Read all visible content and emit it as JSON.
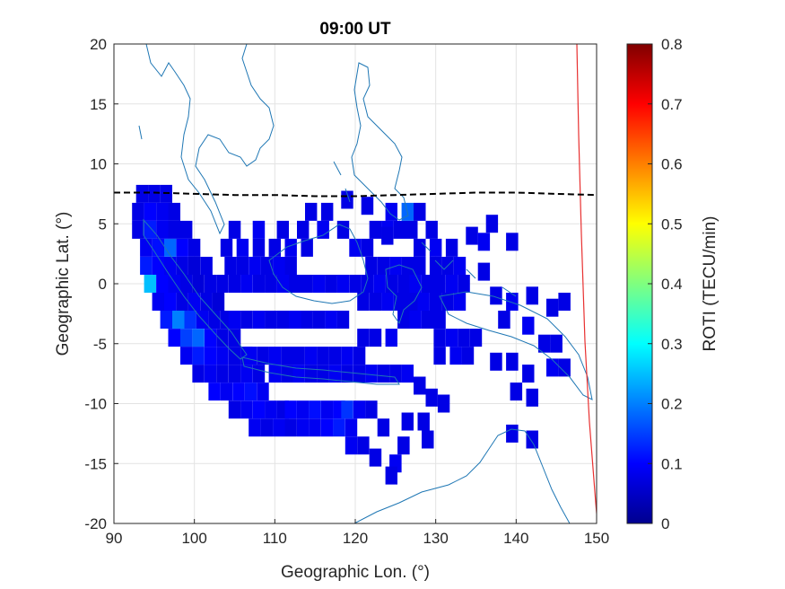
{
  "chart_data": {
    "type": "heatmap",
    "title": "09:00 UT",
    "xlabel": "Geographic Lon. (°)",
    "ylabel": "Geographic Lat. (°)",
    "xlim": [
      90,
      150
    ],
    "ylim": [
      -20,
      20
    ],
    "xticks": [
      90,
      100,
      110,
      120,
      130,
      140,
      150
    ],
    "yticks": [
      -20,
      -15,
      -10,
      -5,
      0,
      5,
      10,
      15,
      20
    ],
    "grid": true,
    "colorbar": {
      "label": "ROTI (TECU/min)",
      "colormap": "jet",
      "range": [
        0,
        0.8
      ],
      "ticks": [
        0,
        0.1,
        0.2,
        0.3,
        0.4,
        0.5,
        0.6,
        0.7,
        0.8
      ]
    },
    "cell_size_deg": 1.5,
    "cells": [
      [
        93.5,
        7.5,
        0.08
      ],
      [
        95.0,
        7.5,
        0.08
      ],
      [
        96.5,
        7.5,
        0.08
      ],
      [
        93.0,
        6.0,
        0.08
      ],
      [
        94.5,
        6.0,
        0.1
      ],
      [
        96.0,
        6.0,
        0.09
      ],
      [
        97.5,
        6.0,
        0.08
      ],
      [
        93.0,
        4.5,
        0.08
      ],
      [
        94.5,
        4.5,
        0.12
      ],
      [
        96.0,
        4.5,
        0.09
      ],
      [
        97.5,
        4.5,
        0.08
      ],
      [
        99.0,
        4.5,
        0.08
      ],
      [
        94.0,
        3.0,
        0.09
      ],
      [
        95.5,
        3.0,
        0.11
      ],
      [
        97.0,
        3.0,
        0.18
      ],
      [
        98.5,
        3.0,
        0.1
      ],
      [
        100.0,
        3.0,
        0.08
      ],
      [
        94.0,
        1.5,
        0.12
      ],
      [
        95.5,
        1.5,
        0.1
      ],
      [
        97.0,
        1.5,
        0.09
      ],
      [
        98.5,
        1.5,
        0.08
      ],
      [
        100.0,
        1.5,
        0.07
      ],
      [
        101.5,
        1.5,
        0.08
      ],
      [
        94.5,
        0.0,
        0.25
      ],
      [
        96.0,
        0.0,
        0.1
      ],
      [
        97.5,
        0.0,
        0.09
      ],
      [
        99.0,
        0.0,
        0.08
      ],
      [
        100.5,
        0.0,
        0.07
      ],
      [
        102.0,
        0.0,
        0.08
      ],
      [
        95.5,
        -1.5,
        0.09
      ],
      [
        97.0,
        -1.5,
        0.1
      ],
      [
        98.5,
        -1.5,
        0.08
      ],
      [
        100.0,
        -1.5,
        0.09
      ],
      [
        101.5,
        -1.5,
        0.08
      ],
      [
        103.0,
        -1.5,
        0.07
      ],
      [
        96.5,
        -3.0,
        0.12
      ],
      [
        98.0,
        -3.0,
        0.2
      ],
      [
        99.5,
        -3.0,
        0.14
      ],
      [
        101.0,
        -3.0,
        0.09
      ],
      [
        102.5,
        -3.0,
        0.08
      ],
      [
        104.0,
        -3.0,
        0.08
      ],
      [
        97.5,
        -4.5,
        0.1
      ],
      [
        99.0,
        -4.5,
        0.15
      ],
      [
        100.5,
        -4.5,
        0.18
      ],
      [
        102.0,
        -4.5,
        0.1
      ],
      [
        103.5,
        -4.5,
        0.08
      ],
      [
        105.0,
        -4.5,
        0.08
      ],
      [
        99.0,
        -6.0,
        0.09
      ],
      [
        100.5,
        -6.0,
        0.12
      ],
      [
        102.0,
        -6.0,
        0.1
      ],
      [
        103.5,
        -6.0,
        0.09
      ],
      [
        105.0,
        -6.0,
        0.08
      ],
      [
        106.5,
        -6.0,
        0.08
      ],
      [
        100.5,
        -7.5,
        0.08
      ],
      [
        102.0,
        -7.5,
        0.09
      ],
      [
        103.5,
        -7.5,
        0.08
      ],
      [
        105.0,
        -7.5,
        0.08
      ],
      [
        106.5,
        -7.5,
        0.09
      ],
      [
        108.0,
        -7.5,
        0.08
      ],
      [
        102.5,
        -9.0,
        0.1
      ],
      [
        104.0,
        -9.0,
        0.09
      ],
      [
        105.5,
        -9.0,
        0.1
      ],
      [
        107.0,
        -9.0,
        0.11
      ],
      [
        108.5,
        -9.0,
        0.09
      ],
      [
        105.0,
        -10.5,
        0.08
      ],
      [
        106.5,
        -10.5,
        0.09
      ],
      [
        108.0,
        -10.5,
        0.1
      ],
      [
        109.5,
        -10.5,
        0.09
      ],
      [
        111.0,
        -10.5,
        0.08
      ],
      [
        107.5,
        -12.0,
        0.09
      ],
      [
        109.0,
        -12.0,
        0.08
      ],
      [
        110.5,
        -12.0,
        0.09
      ],
      [
        112.0,
        -12.0,
        0.08
      ],
      [
        113.5,
        -12.0,
        0.09
      ],
      [
        112.0,
        -10.5,
        0.1
      ],
      [
        113.5,
        -10.5,
        0.09
      ],
      [
        115.0,
        -10.5,
        0.11
      ],
      [
        116.5,
        -10.5,
        0.09
      ],
      [
        118.0,
        -10.5,
        0.1
      ],
      [
        115.0,
        -12.0,
        0.09
      ],
      [
        116.5,
        -12.0,
        0.1
      ],
      [
        118.0,
        -12.0,
        0.12
      ],
      [
        119.5,
        -12.0,
        0.09
      ],
      [
        119.0,
        -10.5,
        0.14
      ],
      [
        120.5,
        -10.5,
        0.09
      ],
      [
        122.0,
        -10.5,
        0.08
      ],
      [
        119.5,
        -13.5,
        0.09
      ],
      [
        121.0,
        -13.5,
        0.08
      ],
      [
        123.5,
        -12.0,
        0.08
      ],
      [
        110.0,
        -7.5,
        0.09
      ],
      [
        111.5,
        -7.5,
        0.08
      ],
      [
        113.0,
        -7.5,
        0.09
      ],
      [
        114.5,
        -7.5,
        0.08
      ],
      [
        116.0,
        -7.5,
        0.08
      ],
      [
        117.5,
        -7.5,
        0.09
      ],
      [
        119.0,
        -7.5,
        0.08
      ],
      [
        120.5,
        -7.5,
        0.08
      ],
      [
        122.0,
        -7.5,
        0.09
      ],
      [
        123.5,
        -7.5,
        0.08
      ],
      [
        125.0,
        -7.5,
        0.08
      ],
      [
        126.5,
        -7.5,
        0.09
      ],
      [
        107.0,
        -6.0,
        0.09
      ],
      [
        108.5,
        -6.0,
        0.08
      ],
      [
        110.0,
        -6.0,
        0.09
      ],
      [
        111.5,
        -6.0,
        0.08
      ],
      [
        113.0,
        -6.0,
        0.08
      ],
      [
        114.5,
        -6.0,
        0.09
      ],
      [
        116.0,
        -6.0,
        0.08
      ],
      [
        117.5,
        -6.0,
        0.08
      ],
      [
        119.0,
        -6.0,
        0.09
      ],
      [
        120.5,
        -6.0,
        0.08
      ],
      [
        105.0,
        -3.0,
        0.09
      ],
      [
        106.5,
        -3.0,
        0.08
      ],
      [
        108.0,
        -3.0,
        0.09
      ],
      [
        109.5,
        -3.0,
        0.08
      ],
      [
        111.0,
        -3.0,
        0.08
      ],
      [
        112.5,
        -3.0,
        0.09
      ],
      [
        114.0,
        -3.0,
        0.08
      ],
      [
        115.5,
        -3.0,
        0.08
      ],
      [
        117.0,
        -3.0,
        0.09
      ],
      [
        118.5,
        -3.0,
        0.08
      ],
      [
        103.5,
        0.0,
        0.08
      ],
      [
        105.0,
        0.0,
        0.08
      ],
      [
        106.5,
        0.0,
        0.09
      ],
      [
        108.0,
        0.0,
        0.08
      ],
      [
        109.5,
        0.0,
        0.08
      ],
      [
        111.0,
        0.0,
        0.09
      ],
      [
        112.5,
        0.0,
        0.08
      ],
      [
        114.0,
        0.0,
        0.08
      ],
      [
        115.5,
        0.0,
        0.09
      ],
      [
        117.0,
        0.0,
        0.08
      ],
      [
        118.5,
        0.0,
        0.09
      ],
      [
        120.0,
        0.0,
        0.08
      ],
      [
        104.5,
        1.5,
        0.08
      ],
      [
        106.0,
        1.5,
        0.08
      ],
      [
        107.5,
        1.5,
        0.09
      ],
      [
        109.0,
        1.5,
        0.08
      ],
      [
        110.5,
        1.5,
        0.09
      ],
      [
        112.0,
        1.5,
        0.08
      ],
      [
        104.0,
        3.0,
        0.08
      ],
      [
        106.0,
        3.0,
        0.09
      ],
      [
        108.0,
        3.0,
        0.08
      ],
      [
        110.0,
        3.0,
        0.08
      ],
      [
        112.0,
        3.0,
        0.09
      ],
      [
        114.0,
        3.0,
        0.08
      ],
      [
        105.0,
        4.5,
        0.08
      ],
      [
        108.0,
        4.5,
        0.09
      ],
      [
        111.0,
        4.5,
        0.08
      ],
      [
        113.5,
        4.5,
        0.08
      ],
      [
        116.0,
        4.5,
        0.09
      ],
      [
        114.5,
        6.0,
        0.08
      ],
      [
        116.5,
        6.0,
        0.08
      ],
      [
        118.5,
        4.5,
        0.08
      ],
      [
        120.0,
        3.0,
        0.09
      ],
      [
        121.5,
        3.0,
        0.08
      ],
      [
        122.5,
        4.5,
        0.08
      ],
      [
        124.0,
        4.5,
        0.09
      ],
      [
        125.5,
        4.5,
        0.08
      ],
      [
        127.0,
        4.5,
        0.08
      ],
      [
        124.5,
        6.0,
        0.09
      ],
      [
        126.5,
        6.0,
        0.18
      ],
      [
        128.0,
        6.0,
        0.08
      ],
      [
        129.5,
        4.5,
        0.08
      ],
      [
        122.0,
        1.5,
        0.08
      ],
      [
        123.5,
        1.5,
        0.08
      ],
      [
        125.0,
        1.5,
        0.09
      ],
      [
        126.5,
        1.5,
        0.08
      ],
      [
        128.0,
        1.5,
        0.08
      ],
      [
        121.5,
        0.0,
        0.08
      ],
      [
        123.0,
        0.0,
        0.09
      ],
      [
        124.5,
        0.0,
        0.08
      ],
      [
        126.0,
        0.0,
        0.08
      ],
      [
        127.5,
        0.0,
        0.09
      ],
      [
        129.0,
        0.0,
        0.08
      ],
      [
        130.5,
        0.0,
        0.08
      ],
      [
        132.0,
        0.0,
        0.09
      ],
      [
        133.5,
        0.0,
        0.08
      ],
      [
        121.0,
        -1.5,
        0.08
      ],
      [
        122.5,
        -1.5,
        0.08
      ],
      [
        124.0,
        -1.5,
        0.09
      ],
      [
        125.5,
        -1.5,
        0.08
      ],
      [
        127.0,
        -1.5,
        0.08
      ],
      [
        128.5,
        -1.5,
        0.09
      ],
      [
        130.0,
        -1.5,
        0.08
      ],
      [
        131.5,
        -1.5,
        0.08
      ],
      [
        133.0,
        -1.5,
        0.09
      ],
      [
        126.0,
        -3.0,
        0.08
      ],
      [
        127.5,
        -3.0,
        0.09
      ],
      [
        129.0,
        -3.0,
        0.08
      ],
      [
        130.5,
        -3.0,
        0.08
      ],
      [
        121.0,
        -4.5,
        0.08
      ],
      [
        122.5,
        -4.5,
        0.08
      ],
      [
        124.5,
        -4.5,
        0.09
      ],
      [
        130.5,
        -4.5,
        0.08
      ],
      [
        132.0,
        -4.5,
        0.09
      ],
      [
        133.5,
        -4.5,
        0.08
      ],
      [
        135.0,
        -4.5,
        0.08
      ],
      [
        130.5,
        -6.0,
        0.08
      ],
      [
        132.5,
        -6.0,
        0.09
      ],
      [
        134.0,
        -6.0,
        0.08
      ],
      [
        130.0,
        1.5,
        0.08
      ],
      [
        131.5,
        1.5,
        0.08
      ],
      [
        133.0,
        1.5,
        0.09
      ],
      [
        132.0,
        3.0,
        0.08
      ],
      [
        134.5,
        4.0,
        0.08
      ],
      [
        136.0,
        3.5,
        0.09
      ],
      [
        137.0,
        5.0,
        0.08
      ],
      [
        139.5,
        3.5,
        0.08
      ],
      [
        130.0,
        3.0,
        0.09
      ],
      [
        128.0,
        3.0,
        0.08
      ],
      [
        136.0,
        1.0,
        0.08
      ],
      [
        137.5,
        -1.0,
        0.08
      ],
      [
        139.5,
        -1.5,
        0.09
      ],
      [
        138.5,
        -3.0,
        0.08
      ],
      [
        142.0,
        -1.0,
        0.08
      ],
      [
        144.5,
        -2.0,
        0.08
      ],
      [
        146.0,
        -1.5,
        0.08
      ],
      [
        141.5,
        -3.5,
        0.09
      ],
      [
        143.5,
        -5.0,
        0.08
      ],
      [
        145.0,
        -5.0,
        0.08
      ],
      [
        137.5,
        -6.5,
        0.08
      ],
      [
        139.5,
        -6.5,
        0.08
      ],
      [
        141.5,
        -7.5,
        0.08
      ],
      [
        144.5,
        -7.0,
        0.09
      ],
      [
        146.0,
        -7.0,
        0.08
      ],
      [
        140.0,
        -9.0,
        0.08
      ],
      [
        142.0,
        -9.5,
        0.08
      ],
      [
        128.0,
        -8.5,
        0.08
      ],
      [
        129.5,
        -9.5,
        0.08
      ],
      [
        131.0,
        -10.0,
        0.08
      ],
      [
        126.5,
        -11.5,
        0.08
      ],
      [
        128.5,
        -11.5,
        0.08
      ],
      [
        139.5,
        -12.5,
        0.08
      ],
      [
        142.0,
        -13.0,
        0.08
      ],
      [
        129.0,
        -13.0,
        0.08
      ],
      [
        126.0,
        -13.5,
        0.08
      ],
      [
        125.0,
        -15.0,
        0.09
      ],
      [
        122.5,
        -14.5,
        0.08
      ],
      [
        124.5,
        -16.0,
        0.08
      ],
      [
        124.0,
        4.0,
        0.08
      ],
      [
        119.0,
        7.0,
        0.08
      ],
      [
        121.5,
        6.5,
        0.08
      ]
    ],
    "boundary_line": {
      "lon": [
        90,
        95,
        100,
        105,
        110,
        115,
        120,
        125,
        130,
        135,
        140,
        145,
        150
      ],
      "lat": [
        7.6,
        7.6,
        7.5,
        7.4,
        7.4,
        7.3,
        7.3,
        7.4,
        7.5,
        7.6,
        7.6,
        7.5,
        7.4
      ]
    },
    "colors": {
      "boundary_line": "#000000",
      "coastline": "#1f77b4",
      "red_curve": "#e83030"
    }
  }
}
